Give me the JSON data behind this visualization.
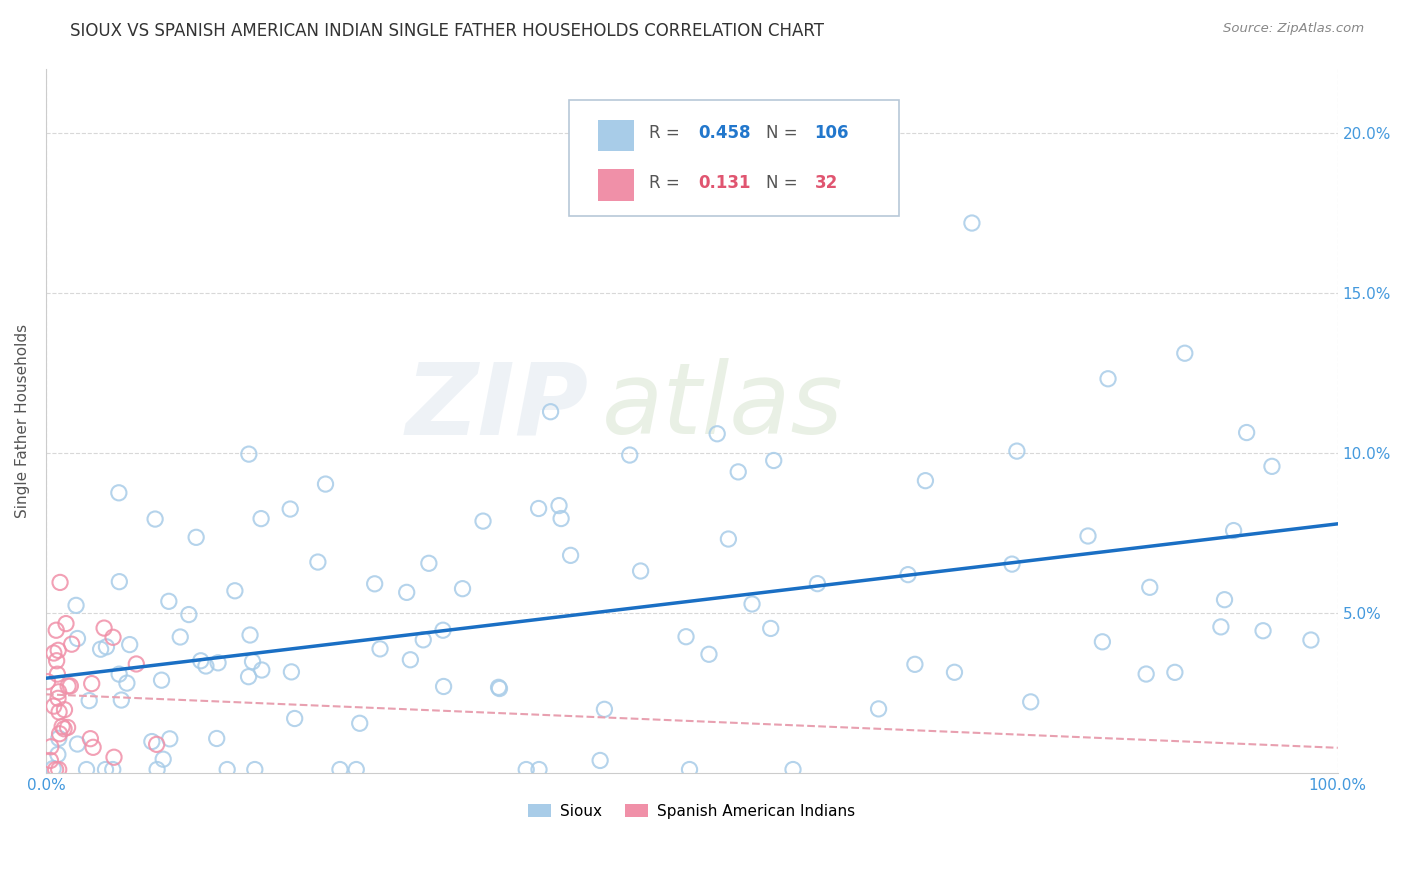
{
  "title": "SIOUX VS SPANISH AMERICAN INDIAN SINGLE FATHER HOUSEHOLDS CORRELATION CHART",
  "source": "Source: ZipAtlas.com",
  "ylabel": "Single Father Households",
  "watermark_zip": "ZIP",
  "watermark_atlas": "atlas",
  "sioux_color": "#a8cce8",
  "spanish_color": "#f090a8",
  "trend_sioux_color": "#1a6fc4",
  "trend_spanish_color": "#e8a0b0",
  "background_color": "#ffffff",
  "grid_color": "#d8d8d8",
  "axis_label_color": "#4499dd",
  "xlim": [
    0,
    1.0
  ],
  "ylim": [
    0,
    0.22
  ],
  "ytick_positions": [
    0.05,
    0.1,
    0.15,
    0.2
  ],
  "ytick_labels": [
    "5.0%",
    "10.0%",
    "15.0%",
    "20.0%"
  ],
  "xtick_positions": [
    0.0,
    1.0
  ],
  "xtick_labels": [
    "0.0%",
    "100.0%"
  ],
  "legend_r1": "0.458",
  "legend_n1": "106",
  "legend_r2": "0.131",
  "legend_n2": "32",
  "dot_size": 120,
  "dot_linewidth": 1.5
}
